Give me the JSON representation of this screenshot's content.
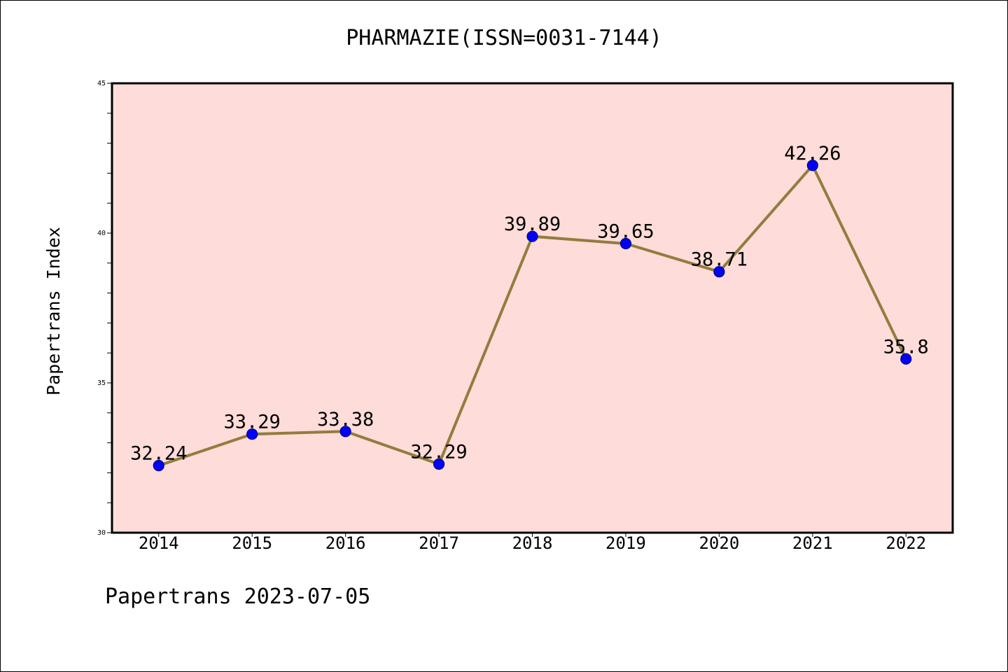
{
  "chart_data": {
    "type": "line",
    "title": "PHARMAZIE(ISSN=0031-7144)",
    "ylabel": "Papertrans Index",
    "categories": [
      "2014",
      "2015",
      "2016",
      "2017",
      "2018",
      "2019",
      "2020",
      "2021",
      "2022"
    ],
    "series": [
      {
        "values": [
          32.24,
          33.29,
          33.38,
          32.29,
          39.89,
          39.65,
          38.71,
          42.26,
          35.8
        ]
      }
    ],
    "ylim": [
      30,
      45
    ],
    "yticks": [
      30,
      35,
      40,
      45
    ],
    "data_labels": true,
    "grid": false,
    "legend": "none"
  },
  "footer": {
    "text": "Papertrans 2023-07-05"
  },
  "colors": {
    "plot_background": "#FDDCD9",
    "line": "#917D3E",
    "marker": "#0000FF",
    "marker_edge": "#00007A",
    "axis": "#000000"
  }
}
